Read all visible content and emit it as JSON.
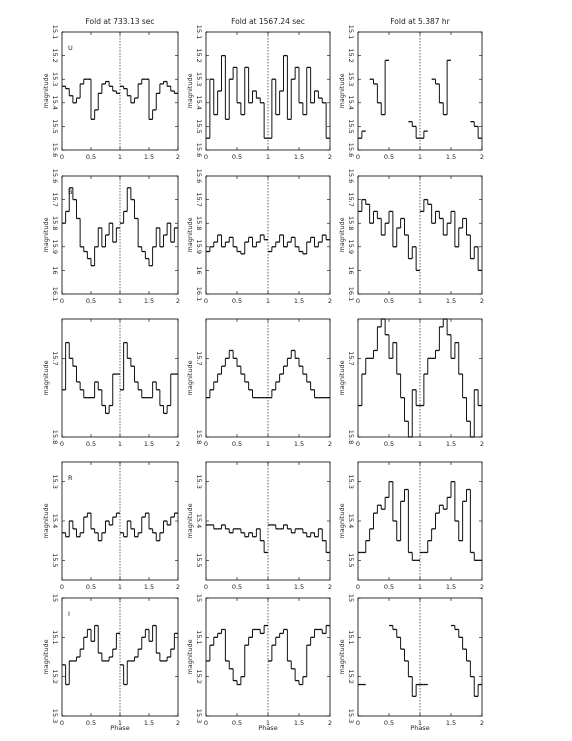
{
  "chart_data": [
    {
      "type": "step",
      "title": "Fold at 733.13 sec",
      "annotation": "U",
      "ylabel": "magnitude",
      "x": [
        0,
        0.0625,
        0.125,
        0.1875,
        0.25,
        0.3125,
        0.375,
        0.4375,
        0.5,
        0.5625,
        0.625,
        0.6875,
        0.75,
        0.8125,
        0.875,
        0.9375
      ],
      "values": [
        15.33,
        15.34,
        15.37,
        15.4,
        15.38,
        15.32,
        15.3,
        15.3,
        15.47,
        15.43,
        15.36,
        15.32,
        15.31,
        15.33,
        15.35,
        15.36
      ],
      "xlim": [
        0,
        2
      ],
      "xticks": [
        0,
        0.5,
        1,
        1.5,
        2
      ],
      "ylim": [
        15.6,
        15.1
      ],
      "yticks": [
        15.1,
        15.2,
        15.3,
        15.4,
        15.5,
        15.6
      ]
    },
    {
      "type": "step",
      "title": "Fold at 1567.24 sec",
      "ylabel": "magnitude",
      "x": [
        0,
        0.0625,
        0.125,
        0.1875,
        0.25,
        0.3125,
        0.375,
        0.4375,
        0.5,
        0.5625,
        0.625,
        0.6875,
        0.75,
        0.8125,
        0.875,
        0.9375
      ],
      "values": [
        15.55,
        15.3,
        15.45,
        15.35,
        15.2,
        15.47,
        15.3,
        15.25,
        15.4,
        15.45,
        15.25,
        15.4,
        15.35,
        15.38,
        15.4,
        15.55
      ],
      "xlim": [
        0,
        2
      ],
      "xticks": [
        0,
        0.5,
        1,
        1.5,
        2
      ],
      "ylim": [
        15.6,
        15.1
      ],
      "yticks": [
        15.1,
        15.2,
        15.3,
        15.4,
        15.5,
        15.6
      ]
    },
    {
      "type": "step",
      "title": "Fold at 5.387 hr",
      "ylabel": "magnitude",
      "x": [
        0,
        0.0625,
        0.125,
        0.1875,
        0.25,
        0.3125,
        0.375,
        0.4375,
        0.5,
        0.5625,
        0.625,
        0.6875,
        0.75,
        0.8125,
        0.875,
        0.9375
      ],
      "values": [
        15.55,
        15.52,
        null,
        15.3,
        15.32,
        15.4,
        15.45,
        15.22,
        null,
        null,
        null,
        null,
        null,
        15.48,
        15.5,
        15.55
      ],
      "xlim": [
        0,
        2
      ],
      "xticks": [
        0,
        0.5,
        1,
        1.5,
        2
      ],
      "ylim": [
        15.6,
        15.1
      ],
      "yticks": [
        15.1,
        15.2,
        15.3,
        15.4,
        15.5,
        15.6
      ]
    },
    {
      "type": "step",
      "annotation": "B",
      "ylabel": "magnitude",
      "x": [
        0,
        0.0625,
        0.125,
        0.1875,
        0.25,
        0.3125,
        0.375,
        0.4375,
        0.5,
        0.5625,
        0.625,
        0.6875,
        0.75,
        0.8125,
        0.875,
        0.9375
      ],
      "values": [
        15.8,
        15.75,
        15.65,
        15.7,
        15.78,
        15.9,
        15.92,
        15.95,
        15.98,
        15.9,
        15.82,
        15.9,
        15.85,
        15.8,
        15.88,
        15.82
      ],
      "xlim": [
        0,
        2
      ],
      "xticks": [
        0,
        0.5,
        1,
        1.5,
        2
      ],
      "ylim": [
        16.1,
        15.6
      ],
      "yticks": [
        15.6,
        15.7,
        15.8,
        15.9,
        16,
        16.1
      ]
    },
    {
      "type": "step",
      "ylabel": "magnitude",
      "x": [
        0,
        0.0625,
        0.125,
        0.1875,
        0.25,
        0.3125,
        0.375,
        0.4375,
        0.5,
        0.5625,
        0.625,
        0.6875,
        0.75,
        0.8125,
        0.875,
        0.9375
      ],
      "values": [
        15.92,
        15.9,
        15.88,
        15.85,
        15.9,
        15.88,
        15.86,
        15.9,
        15.92,
        15.93,
        15.88,
        15.86,
        15.9,
        15.88,
        15.85,
        15.87
      ],
      "xlim": [
        0,
        2
      ],
      "xticks": [
        0,
        0.5,
        1,
        1.5,
        2
      ],
      "ylim": [
        16.1,
        15.6
      ],
      "yticks": [
        15.6,
        15.7,
        15.8,
        15.9,
        16,
        16.1
      ]
    },
    {
      "type": "step",
      "ylabel": "magnitude",
      "x": [
        0,
        0.0625,
        0.125,
        0.1875,
        0.25,
        0.3125,
        0.375,
        0.4375,
        0.5,
        0.5625,
        0.625,
        0.6875,
        0.75,
        0.8125,
        0.875,
        0.9375
      ],
      "values": [
        15.75,
        15.7,
        15.72,
        15.8,
        15.75,
        15.78,
        15.85,
        15.8,
        15.75,
        15.9,
        15.82,
        15.78,
        15.85,
        15.95,
        15.9,
        16
      ],
      "xlim": [
        0,
        2
      ],
      "xticks": [
        0,
        0.5,
        1,
        1.5,
        2
      ],
      "ylim": [
        16.1,
        15.6
      ],
      "yticks": [
        15.6,
        15.7,
        15.8,
        15.9,
        16,
        16.1
      ]
    },
    {
      "type": "step",
      "ylabel": "magnitude",
      "x": [
        0,
        0.0625,
        0.125,
        0.1875,
        0.25,
        0.3125,
        0.375,
        0.4375,
        0.5,
        0.5625,
        0.625,
        0.6875,
        0.75,
        0.8125,
        0.875,
        0.9375
      ],
      "values": [
        15.74,
        15.68,
        15.7,
        15.71,
        15.73,
        15.74,
        15.75,
        15.75,
        15.75,
        15.73,
        15.74,
        15.76,
        15.77,
        15.76,
        15.72,
        15.72
      ],
      "xlim": [
        0,
        2
      ],
      "xticks": [
        0,
        0.5,
        1,
        1.5,
        2
      ],
      "ylim": [
        15.8,
        15.65
      ],
      "yticks": [
        15.7,
        15.8
      ]
    },
    {
      "type": "step",
      "ylabel": "magnitude",
      "x": [
        0,
        0.0625,
        0.125,
        0.1875,
        0.25,
        0.3125,
        0.375,
        0.4375,
        0.5,
        0.5625,
        0.625,
        0.6875,
        0.75,
        0.8125,
        0.875,
        0.9375
      ],
      "values": [
        15.75,
        15.74,
        15.73,
        15.72,
        15.71,
        15.7,
        15.69,
        15.7,
        15.71,
        15.72,
        15.73,
        15.74,
        15.75,
        15.75,
        15.75,
        15.75
      ],
      "xlim": [
        0,
        2
      ],
      "xticks": [
        0,
        0.5,
        1,
        1.5,
        2
      ],
      "ylim": [
        15.8,
        15.65
      ],
      "yticks": [
        15.7,
        15.8
      ]
    },
    {
      "type": "step",
      "ylabel": "magnitude",
      "x": [
        0,
        0.0625,
        0.125,
        0.1875,
        0.25,
        0.3125,
        0.375,
        0.4375,
        0.5,
        0.5625,
        0.625,
        0.6875,
        0.75,
        0.8125,
        0.875,
        0.9375
      ],
      "values": [
        15.76,
        15.72,
        15.7,
        15.7,
        15.69,
        15.66,
        15.65,
        15.67,
        15.7,
        15.68,
        15.72,
        15.75,
        15.78,
        15.8,
        15.74,
        15.76
      ],
      "xlim": [
        0,
        2
      ],
      "xticks": [
        0,
        0.5,
        1,
        1.5,
        2
      ],
      "ylim": [
        15.8,
        15.65
      ],
      "yticks": [
        15.7,
        15.8
      ]
    },
    {
      "type": "step",
      "annotation": "R",
      "ylabel": "magnitude",
      "x": [
        0,
        0.0625,
        0.125,
        0.1875,
        0.25,
        0.3125,
        0.375,
        0.4375,
        0.5,
        0.5625,
        0.625,
        0.6875,
        0.75,
        0.8125,
        0.875,
        0.9375
      ],
      "values": [
        15.43,
        15.44,
        15.4,
        15.42,
        15.44,
        15.43,
        15.39,
        15.38,
        15.42,
        15.43,
        15.45,
        15.43,
        15.4,
        15.41,
        15.39,
        15.38
      ],
      "xlim": [
        0,
        2
      ],
      "xticks": [
        0,
        0.5,
        1,
        1.5,
        2
      ],
      "ylim": [
        15.55,
        15.25
      ],
      "yticks": [
        15.3,
        15.4,
        15.5
      ]
    },
    {
      "type": "step",
      "ylabel": "magnitude",
      "x": [
        0,
        0.0625,
        0.125,
        0.1875,
        0.25,
        0.3125,
        0.375,
        0.4375,
        0.5,
        0.5625,
        0.625,
        0.6875,
        0.75,
        0.8125,
        0.875,
        0.9375
      ],
      "values": [
        15.41,
        15.41,
        15.42,
        15.42,
        15.41,
        15.42,
        15.43,
        15.42,
        15.42,
        15.43,
        15.44,
        15.43,
        15.44,
        15.42,
        15.45,
        15.48
      ],
      "xlim": [
        0,
        2
      ],
      "xticks": [
        0,
        0.5,
        1,
        1.5,
        2
      ],
      "ylim": [
        15.55,
        15.25
      ],
      "yticks": [
        15.3,
        15.4,
        15.5
      ]
    },
    {
      "type": "step",
      "ylabel": "magnitude",
      "x": [
        0,
        0.0625,
        0.125,
        0.1875,
        0.25,
        0.3125,
        0.375,
        0.4375,
        0.5,
        0.5625,
        0.625,
        0.6875,
        0.75,
        0.8125,
        0.875,
        0.9375
      ],
      "values": [
        15.48,
        15.48,
        15.45,
        15.42,
        15.38,
        15.36,
        15.37,
        15.34,
        15.3,
        15.4,
        15.45,
        15.35,
        15.32,
        15.48,
        15.5,
        15.5
      ],
      "xlim": [
        0,
        2
      ],
      "xticks": [
        0,
        0.5,
        1,
        1.5,
        2
      ],
      "ylim": [
        15.55,
        15.25
      ],
      "yticks": [
        15.3,
        15.4,
        15.5
      ]
    },
    {
      "type": "step",
      "annotation": "I",
      "ylabel": "magnitude",
      "xlabel": "Phase",
      "x": [
        0,
        0.0625,
        0.125,
        0.1875,
        0.25,
        0.3125,
        0.375,
        0.4375,
        0.5,
        0.5625,
        0.625,
        0.6875,
        0.75,
        0.8125,
        0.875,
        0.9375
      ],
      "values": [
        15.17,
        15.22,
        15.16,
        15.16,
        15.15,
        15.13,
        15.1,
        15.08,
        15.11,
        15.07,
        15.14,
        15.16,
        15.16,
        15.15,
        15.13,
        15.09
      ],
      "xlim": [
        0,
        2
      ],
      "xticks": [
        0,
        0.5,
        1,
        1.5,
        2
      ],
      "ylim": [
        15.3,
        15
      ],
      "yticks": [
        15,
        15.1,
        15.2,
        15.3
      ]
    },
    {
      "type": "step",
      "ylabel": "magnitude",
      "xlabel": "Phase",
      "x": [
        0,
        0.0625,
        0.125,
        0.1875,
        0.25,
        0.3125,
        0.375,
        0.4375,
        0.5,
        0.5625,
        0.625,
        0.6875,
        0.75,
        0.8125,
        0.875,
        0.9375
      ],
      "values": [
        15.16,
        15.12,
        15.1,
        15.09,
        15.08,
        15.16,
        15.18,
        15.21,
        15.22,
        15.2,
        15.12,
        15.1,
        15.08,
        15.08,
        15.09,
        15.07
      ],
      "xlim": [
        0,
        2
      ],
      "xticks": [
        0,
        0.5,
        1,
        1.5,
        2
      ],
      "ylim": [
        15.3,
        15
      ],
      "yticks": [
        15,
        15.1,
        15.2,
        15.3
      ]
    },
    {
      "type": "step",
      "ylabel": "magnitude",
      "xlabel": "Phase",
      "x": [
        0,
        0.0625,
        0.125,
        0.1875,
        0.25,
        0.3125,
        0.375,
        0.4375,
        0.5,
        0.5625,
        0.625,
        0.6875,
        0.75,
        0.8125,
        0.875,
        0.9375
      ],
      "values": [
        15.22,
        15.22,
        null,
        null,
        null,
        null,
        null,
        null,
        15.07,
        15.08,
        15.1,
        15.13,
        15.16,
        15.2,
        15.25,
        15.22
      ],
      "xlim": [
        0,
        2
      ],
      "xticks": [
        0,
        0.5,
        1,
        1.5,
        2
      ],
      "ylim": [
        15.3,
        15
      ],
      "yticks": [
        15,
        15.1,
        15.2,
        15.3
      ]
    }
  ]
}
